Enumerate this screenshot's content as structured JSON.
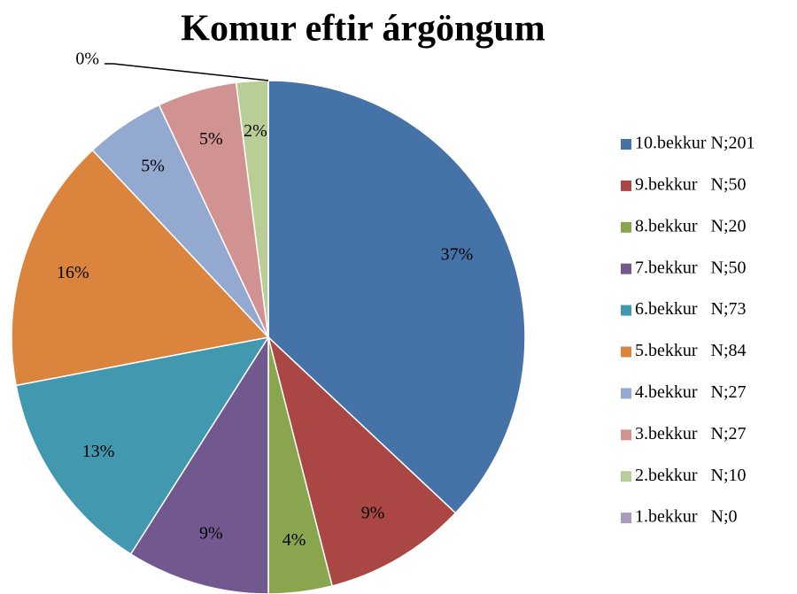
{
  "chart_data": {
    "type": "pie",
    "title": "Komur eftir árgöngum",
    "categories": [
      "10.bekkur N;201",
      "9.bekkur   N;50",
      "8.bekkur   N;20",
      "7.bekkur   N;50",
      "6.bekkur   N;73",
      "5.bekkur   N;84",
      "4.bekkur   N;27",
      "3.bekkur   N;27",
      "2.bekkur   N;10",
      "1.bekkur   N;0"
    ],
    "values": [
      37,
      9,
      4,
      9,
      13,
      16,
      5,
      5,
      2,
      0
    ],
    "value_labels": [
      "37%",
      "9%",
      "4%",
      "9%",
      "13%",
      "16%",
      "5%",
      "5%",
      "2%",
      "0%"
    ],
    "colors": [
      "#4572A7",
      "#AA4643",
      "#89A54E",
      "#71588F",
      "#4198AF",
      "#DB843D",
      "#93A9CF",
      "#D19392",
      "#B9CD96",
      "#A99BBD"
    ],
    "legend": "right"
  }
}
